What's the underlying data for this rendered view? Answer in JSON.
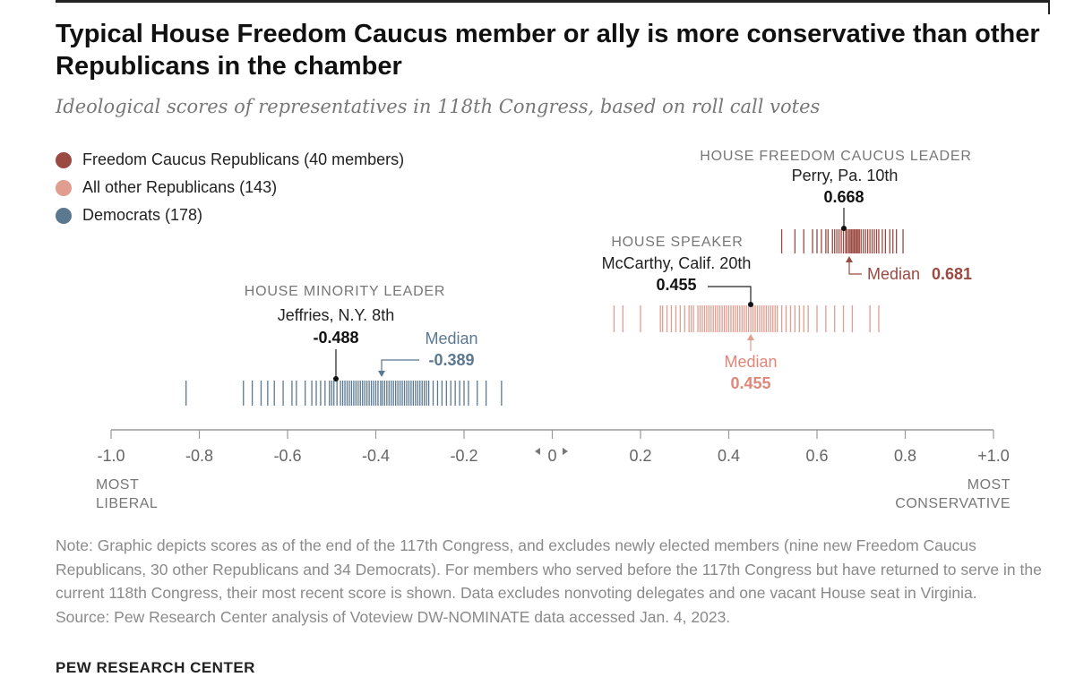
{
  "title": "Typical House Freedom Caucus member or ally is more conservative than other Republicans in the chamber",
  "subtitle": "Ideological scores of representatives in 118th Congress, based on roll call votes",
  "legend": [
    {
      "label": "Freedom Caucus Republicans (40 members)",
      "color": "#9b4a42"
    },
    {
      "label": "All other Republicans (143)",
      "color": "#e09d90"
    },
    {
      "label": "Democrats (178)",
      "color": "#5b7891"
    }
  ],
  "annotations": {
    "fc_leader": {
      "role": "HOUSE FREEDOM CAUCUS LEADER",
      "name": "Perry, Pa. 10th",
      "score": "0.668"
    },
    "speaker": {
      "role": "HOUSE SPEAKER",
      "name": "McCarthy, Calif. 20th",
      "score": "0.455"
    },
    "minority_leader": {
      "role": "HOUSE MINORITY LEADER",
      "name": "Jeffries, N.Y. 8th",
      "score": "-0.488"
    },
    "fc_median": {
      "label": "Median",
      "value": "0.681"
    },
    "rep_median": {
      "label": "Median",
      "value": "0.455"
    },
    "dem_median": {
      "label": "Median",
      "value": "-0.389"
    }
  },
  "axis_end_labels": {
    "left": [
      "MOST",
      "LIBERAL"
    ],
    "right": [
      "MOST",
      "CONSERVATIVE"
    ]
  },
  "note": "Note: Graphic depicts scores as of the end of the 117th Congress, and excludes newly elected members (nine new Freedom Caucus Republicans, 30 other Republicans and 34 Democrats). For members who served before the 117th Congress but have returned to serve in the current 118th Congress, their most recent score is shown. Data excludes nonvoting delegates and one vacant House seat in Virginia.",
  "source": "Source: Pew Research Center analysis of Voteview DW-NOMINATE data accessed Jan. 4, 2023.",
  "organization": "PEW RESEARCH CENTER",
  "chart_data": {
    "type": "strip",
    "xlim": [
      -1.0,
      1.0
    ],
    "ticks": [
      {
        "value": -1.0,
        "label": "-1.0"
      },
      {
        "value": -0.8,
        "label": "-0.8"
      },
      {
        "value": -0.6,
        "label": "-0.6"
      },
      {
        "value": -0.4,
        "label": "-0.4"
      },
      {
        "value": -0.2,
        "label": "-0.2"
      },
      {
        "value": 0,
        "label": "0"
      },
      {
        "value": 0.2,
        "label": "0.2"
      },
      {
        "value": 0.4,
        "label": "0.4"
      },
      {
        "value": 0.6,
        "label": "0.6"
      },
      {
        "value": 0.8,
        "label": "0.8"
      },
      {
        "value": 1.0,
        "label": "+1.0"
      }
    ],
    "series": [
      {
        "name": "Freedom Caucus Republicans (40 members)",
        "color": "#9b4a42",
        "median": 0.681,
        "values": [
          0.52,
          0.55,
          0.57,
          0.59,
          0.6,
          0.61,
          0.62,
          0.625,
          0.635,
          0.64,
          0.645,
          0.65,
          0.655,
          0.66,
          0.665,
          0.668,
          0.672,
          0.675,
          0.678,
          0.681,
          0.684,
          0.687,
          0.69,
          0.693,
          0.696,
          0.7,
          0.705,
          0.71,
          0.715,
          0.72,
          0.725,
          0.73,
          0.735,
          0.74,
          0.748,
          0.755,
          0.765,
          0.772,
          0.78,
          0.795
        ]
      },
      {
        "name": "All other Republicans (143)",
        "color": "#e09d90",
        "median": 0.455,
        "values": [
          0.14,
          0.16,
          0.2,
          0.245,
          0.25,
          0.26,
          0.27,
          0.28,
          0.29,
          0.3,
          0.31,
          0.315,
          0.32,
          0.33,
          0.335,
          0.34,
          0.345,
          0.35,
          0.355,
          0.36,
          0.365,
          0.37,
          0.375,
          0.38,
          0.385,
          0.39,
          0.395,
          0.4,
          0.405,
          0.41,
          0.415,
          0.42,
          0.425,
          0.43,
          0.435,
          0.44,
          0.445,
          0.45,
          0.455,
          0.46,
          0.465,
          0.47,
          0.475,
          0.48,
          0.485,
          0.49,
          0.495,
          0.5,
          0.505,
          0.51,
          0.52,
          0.53,
          0.54,
          0.55,
          0.56,
          0.57,
          0.58,
          0.6,
          0.62,
          0.64,
          0.66,
          0.68,
          0.72,
          0.74
        ]
      },
      {
        "name": "Democrats (178)",
        "color": "#5b7891",
        "median": -0.389,
        "values": [
          -0.83,
          -0.7,
          -0.68,
          -0.66,
          -0.645,
          -0.63,
          -0.61,
          -0.59,
          -0.58,
          -0.56,
          -0.545,
          -0.535,
          -0.525,
          -0.515,
          -0.505,
          -0.5,
          -0.495,
          -0.488,
          -0.48,
          -0.475,
          -0.47,
          -0.465,
          -0.46,
          -0.455,
          -0.45,
          -0.445,
          -0.44,
          -0.435,
          -0.43,
          -0.425,
          -0.42,
          -0.415,
          -0.41,
          -0.405,
          -0.4,
          -0.395,
          -0.389,
          -0.385,
          -0.38,
          -0.375,
          -0.37,
          -0.365,
          -0.36,
          -0.355,
          -0.35,
          -0.345,
          -0.34,
          -0.335,
          -0.33,
          -0.325,
          -0.32,
          -0.315,
          -0.31,
          -0.305,
          -0.3,
          -0.295,
          -0.29,
          -0.285,
          -0.28,
          -0.27,
          -0.26,
          -0.25,
          -0.24,
          -0.23,
          -0.22,
          -0.21,
          -0.2,
          -0.19,
          -0.17,
          -0.15,
          -0.115
        ]
      }
    ]
  }
}
